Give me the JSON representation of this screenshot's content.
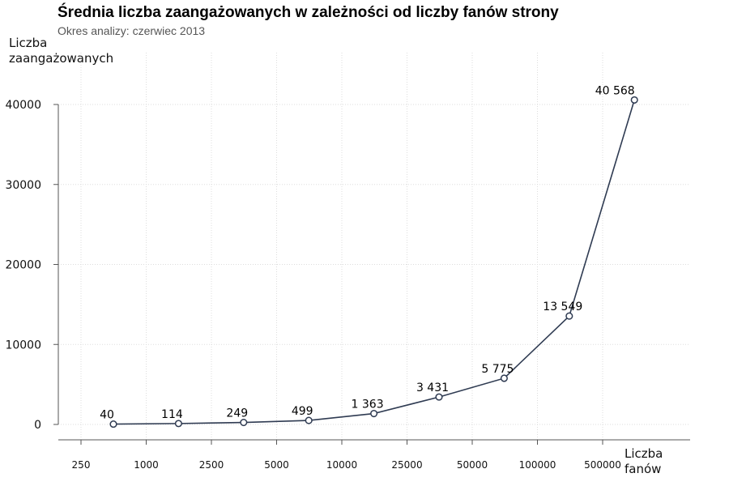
{
  "chart_data": {
    "type": "line",
    "title": "Średnia liczba zaangażowanych w zależności od liczby fanów strony",
    "subtitle": "Okres analizy: czerwiec 2013",
    "ylabel_lines": [
      "Liczba",
      "zaangażowanych"
    ],
    "xlabel_lines": [
      "Liczba",
      "fanów"
    ],
    "x_ticks": [
      "250",
      "1000",
      "2500",
      "5000",
      "10000",
      "25000",
      "50000",
      "100000",
      "500000"
    ],
    "y_ticks": [
      "0",
      "10000",
      "20000",
      "30000",
      "40000"
    ],
    "ylim": [
      0,
      40000
    ],
    "grid": true,
    "series": [
      {
        "values": [
          40,
          114,
          249,
          499,
          1363,
          3431,
          5775,
          13549,
          40568
        ],
        "labels": [
          "40",
          "114",
          "249",
          "499",
          "1 363",
          "3 431",
          "5 775",
          "13 549",
          "40 568"
        ]
      }
    ],
    "colors": {
      "line": "#2f3b52",
      "grid": "#dddddd",
      "axis": "#555555"
    }
  }
}
